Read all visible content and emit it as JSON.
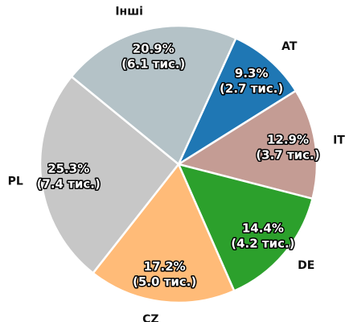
{
  "chart_data": {
    "type": "pie",
    "categories": [
      "AT",
      "IT",
      "DE",
      "CZ",
      "PL",
      "Інші"
    ],
    "values": [
      9.3,
      12.9,
      14.4,
      17.2,
      25.3,
      20.9
    ],
    "value_labels": [
      "9.3%",
      "12.9%",
      "14.4%",
      "17.2%",
      "25.3%",
      "20.9%"
    ],
    "count_labels": [
      "(2.7 тис.)",
      "(3.7 тис.)",
      "(4.2 тис.)",
      "(5.0 тис.)",
      "(7.4 тис.)",
      "(6.1 тис.)"
    ],
    "colors": [
      "#1f77b4",
      "#c49c94",
      "#2ca02c",
      "#ffbb78",
      "#c7c7c7",
      "#b4c2c7"
    ]
  }
}
